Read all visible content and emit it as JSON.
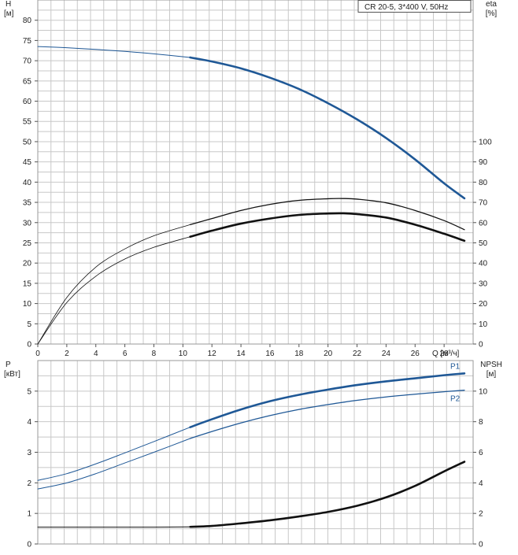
{
  "chart_data": [
    {
      "type": "line",
      "title": "CR 20-5, 3*400 V, 50Hz",
      "x_axis": {
        "label": "Q [м³/ч]",
        "range": [
          0,
          30
        ],
        "ticks": [
          0,
          2,
          4,
          6,
          8,
          10,
          12,
          14,
          16,
          18,
          20,
          22,
          24,
          26,
          28
        ]
      },
      "y_left": {
        "label_line1": "H",
        "label_line2": "[м]",
        "range": [
          0,
          85
        ],
        "ticks": [
          0,
          5,
          10,
          15,
          20,
          25,
          30,
          35,
          40,
          45,
          50,
          55,
          60,
          65,
          70,
          75,
          80
        ]
      },
      "y_right": {
        "label_line1": "eta",
        "label_line2": "[%]",
        "range": [
          0,
          170
        ],
        "ticks": [
          0,
          10,
          20,
          30,
          40,
          50,
          60,
          70,
          80,
          90,
          100
        ]
      },
      "grid": true,
      "series": [
        {
          "axis": "left",
          "color": "#1f5896",
          "x": [
            0,
            2,
            4,
            6,
            8,
            10.5,
            12,
            14,
            16,
            18,
            20,
            22,
            24,
            26,
            28,
            29.4
          ],
          "y": [
            73.5,
            73.2,
            72.8,
            72.3,
            71.7,
            70.8,
            69.8,
            68.1,
            65.8,
            63.0,
            59.5,
            55.5,
            50.9,
            45.6,
            39.7,
            36.0
          ],
          "thin_until_x": 10.5,
          "thin_width": 1,
          "thick_width": 2.6
        },
        {
          "axis": "right",
          "color": "#111111",
          "x": [
            0,
            2,
            4,
            6,
            8,
            10.5,
            12,
            14,
            16,
            18,
            20,
            21,
            22,
            24,
            26,
            28,
            29.4
          ],
          "y": [
            0,
            23,
            38,
            47,
            53.5,
            59,
            62,
            66,
            69,
            71,
            71.8,
            71.9,
            71.6,
            69.8,
            66,
            61,
            56.5
          ],
          "thin_until_x": 10.5,
          "thin_width": 0.8,
          "thick_width": 1.3
        },
        {
          "axis": "right",
          "color": "#111111",
          "x": [
            0,
            2,
            4,
            6,
            8,
            10.5,
            12,
            14,
            16,
            18,
            20,
            21,
            22,
            24,
            26,
            28,
            29.4
          ],
          "y": [
            0,
            20.5,
            33.5,
            42,
            47.8,
            53,
            56,
            59.5,
            62,
            63.8,
            64.5,
            64.6,
            64.2,
            62.5,
            59,
            54.5,
            51
          ],
          "thin_until_x": 10.5,
          "thin_width": 0.8,
          "thick_width": 2.6
        }
      ]
    },
    {
      "type": "line",
      "x_axis": {
        "range": [
          0,
          30
        ]
      },
      "y_left": {
        "label_line1": "P",
        "label_line2": "[кВт]",
        "range": [
          0,
          6
        ],
        "ticks": [
          0,
          1,
          2,
          3,
          4,
          5
        ]
      },
      "y_right": {
        "label_line1": "NPSH",
        "label_line2": "[м]",
        "range": [
          0,
          12
        ],
        "ticks": [
          0,
          2,
          4,
          6,
          8,
          10
        ]
      },
      "grid": true,
      "series": [
        {
          "name": "P1",
          "axis": "left",
          "color": "#1f5896",
          "x": [
            0,
            2,
            4,
            6,
            8,
            10.5,
            12,
            14,
            16,
            18,
            20,
            22,
            24,
            26,
            28,
            29.4
          ],
          "y": [
            2.08,
            2.3,
            2.62,
            2.98,
            3.35,
            3.82,
            4.08,
            4.4,
            4.67,
            4.88,
            5.05,
            5.2,
            5.32,
            5.42,
            5.52,
            5.58
          ],
          "thin_until_x": 10.5,
          "thin_width": 1,
          "thick_width": 2.6
        },
        {
          "name": "P2",
          "axis": "left",
          "color": "#1f5896",
          "x": [
            0,
            2,
            4,
            6,
            8,
            10.5,
            12,
            14,
            16,
            18,
            20,
            22,
            24,
            26,
            28,
            29.4
          ],
          "y": [
            1.8,
            2.0,
            2.3,
            2.65,
            3.0,
            3.45,
            3.68,
            3.96,
            4.2,
            4.4,
            4.56,
            4.7,
            4.81,
            4.9,
            4.98,
            5.03
          ],
          "thin_until_x": 10.5,
          "thin_width": 1,
          "thick_width": 1.3
        },
        {
          "axis": "right",
          "color": "#111111",
          "x": [
            0,
            2,
            4,
            6,
            8,
            10.5,
            12,
            14,
            16,
            18,
            20,
            22,
            24,
            26,
            28,
            29.4
          ],
          "y": [
            1.1,
            1.1,
            1.1,
            1.1,
            1.1,
            1.12,
            1.18,
            1.35,
            1.55,
            1.8,
            2.1,
            2.5,
            3.05,
            3.8,
            4.75,
            5.38
          ],
          "thin_until_x": 10.5,
          "thin_width": 1,
          "thick_width": 2.6
        }
      ]
    }
  ]
}
